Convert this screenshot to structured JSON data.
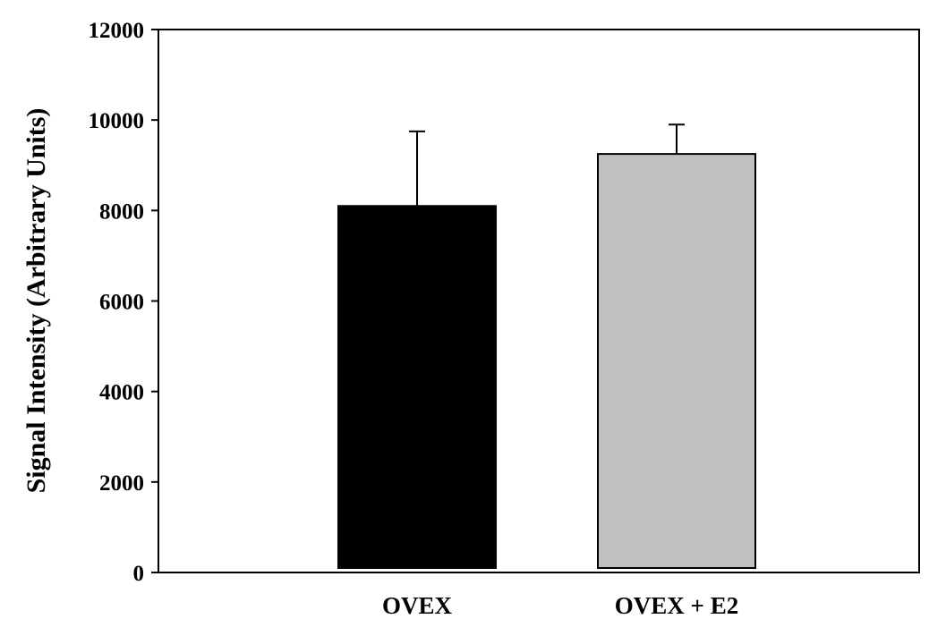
{
  "chart_data": {
    "type": "bar",
    "title": "",
    "xlabel": "",
    "ylabel": "Signal Intensity (Arbitrary Units)",
    "ylim": [
      0,
      12000
    ],
    "yticks": [
      0,
      2000,
      4000,
      6000,
      8000,
      10000,
      12000
    ],
    "ytick_labels": [
      "0",
      "2000",
      "4000",
      "6000",
      "8000",
      "10000",
      "12000"
    ],
    "categories": [
      "OVEX",
      "OVEX + E2"
    ],
    "values": [
      8100,
      9250
    ],
    "errors": [
      1650,
      650
    ],
    "colors": [
      "#000000",
      "#c0c0c0"
    ],
    "grid": false,
    "legend": "none"
  }
}
